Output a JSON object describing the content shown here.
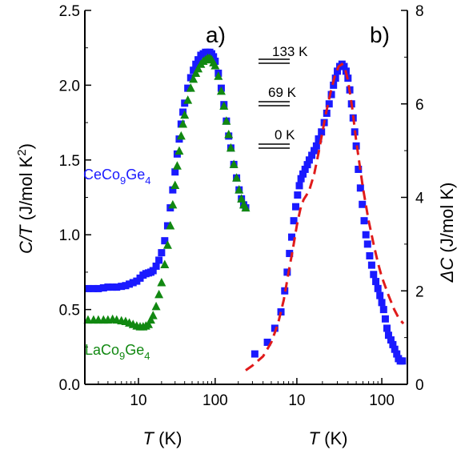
{
  "colors": {
    "ce": "#1a1aff",
    "la": "#118811",
    "fit": "#e01b1b",
    "axis": "#000000"
  },
  "chart_data": [
    {
      "panel": "a)",
      "type": "scatter",
      "xlabel_italic": "T",
      "xlabel_unit": " (K)",
      "ylabel_italic": "C/T",
      "ylabel_unit": " (J/mol K",
      "ylabel_sup": "2",
      "ylabel_close": ")",
      "x_scale": "log",
      "xlim": [
        2,
        250
      ],
      "ylim": [
        0.0,
        2.5
      ],
      "x_ticks": [
        10,
        100
      ],
      "x_tick_labels": [
        "10",
        "100"
      ],
      "y_ticks": [
        0.0,
        0.5,
        1.0,
        1.5,
        2.0,
        2.5
      ],
      "y_tick_labels": [
        "0.0",
        "0.5",
        "1.0",
        "1.5",
        "2.0",
        "2.5"
      ],
      "series": [
        {
          "name_main": "CeCo",
          "name_sub1": "9",
          "name_mid": "Ge",
          "name_sub2": "4",
          "marker": "square",
          "color": "#1a1aff",
          "x": [
            2.2,
            2.6,
            3.0,
            3.5,
            4.0,
            4.6,
            5.2,
            6.0,
            6.8,
            7.6,
            8.5,
            9.5,
            10.5,
            11.5,
            12.5,
            13.5,
            14.5,
            15.5,
            17,
            18.5,
            20,
            22,
            24,
            26,
            28,
            30,
            32,
            34,
            36,
            38,
            40,
            44,
            48,
            52,
            56,
            60,
            65,
            70,
            75,
            80,
            85,
            90,
            95,
            100,
            110,
            120,
            130,
            140,
            150,
            160,
            175,
            190,
            205,
            220,
            235,
            250
          ],
          "y": [
            0.64,
            0.64,
            0.64,
            0.645,
            0.65,
            0.65,
            0.65,
            0.655,
            0.66,
            0.67,
            0.68,
            0.69,
            0.71,
            0.73,
            0.74,
            0.745,
            0.75,
            0.76,
            0.79,
            0.83,
            0.88,
            0.96,
            1.06,
            1.18,
            1.3,
            1.42,
            1.54,
            1.64,
            1.74,
            1.82,
            1.88,
            1.98,
            2.05,
            2.1,
            2.14,
            2.17,
            2.2,
            2.21,
            2.22,
            2.22,
            2.22,
            2.21,
            2.19,
            2.16,
            2.08,
            1.98,
            1.87,
            1.76,
            1.66,
            1.58,
            1.47,
            1.38,
            1.3,
            1.24,
            1.2,
            1.18
          ]
        },
        {
          "name_main": "LaCo",
          "name_sub1": "9",
          "name_mid": "Ge",
          "name_sub2": "4",
          "marker": "triangle",
          "color": "#118811",
          "x": [
            2.2,
            2.6,
            3.0,
            3.5,
            4.0,
            4.6,
            5.2,
            6.0,
            6.8,
            7.6,
            8.5,
            9.5,
            10.5,
            11.5,
            12.5,
            13.5,
            14.5,
            15.5,
            17,
            18.5,
            20,
            22,
            24,
            26,
            28,
            30,
            32,
            34,
            36,
            38,
            40,
            44,
            48,
            52,
            56,
            60,
            65,
            70,
            75,
            80,
            85,
            90,
            95,
            100,
            110,
            120,
            130,
            140,
            150,
            160,
            175,
            190,
            205,
            220,
            235,
            250
          ],
          "y": [
            0.43,
            0.43,
            0.43,
            0.43,
            0.43,
            0.435,
            0.43,
            0.425,
            0.42,
            0.41,
            0.4,
            0.39,
            0.385,
            0.385,
            0.39,
            0.4,
            0.43,
            0.46,
            0.52,
            0.6,
            0.68,
            0.8,
            0.93,
            1.06,
            1.2,
            1.33,
            1.46,
            1.56,
            1.66,
            1.74,
            1.8,
            1.9,
            1.98,
            2.04,
            2.08,
            2.11,
            2.14,
            2.16,
            2.17,
            2.18,
            2.18,
            2.17,
            2.15,
            2.13,
            2.06,
            1.96,
            1.86,
            1.76,
            1.67,
            1.58,
            1.47,
            1.38,
            1.3,
            1.24,
            1.2,
            1.18
          ]
        }
      ]
    },
    {
      "panel": "b)",
      "type": "scatter",
      "xlabel_italic": "T",
      "xlabel_unit": " (K)",
      "ylabel_italic": "ΔC",
      "ylabel_unit": " (J/mol K)",
      "x_scale": "log",
      "xlim": [
        2.5,
        200
      ],
      "ylim": [
        0,
        8
      ],
      "x_ticks": [
        10,
        100
      ],
      "x_tick_labels": [
        "10",
        "100"
      ],
      "y_ticks": [
        0,
        2,
        4,
        6,
        8
      ],
      "y_tick_labels": [
        "0",
        "2",
        "4",
        "6",
        "8"
      ],
      "series": [
        {
          "marker": "square",
          "color": "#1a1aff",
          "x": [
            3.2,
            4.5,
            5.5,
            6.5,
            7.2,
            7.7,
            8.2,
            8.7,
            9.2,
            9.7,
            10.2,
            10.7,
            11.2,
            11.8,
            12.5,
            13.3,
            14,
            15,
            16,
            17,
            18,
            19.5,
            21,
            22.5,
            24,
            25.5,
            27,
            28.5,
            30,
            32,
            34,
            36,
            38,
            40,
            42,
            44,
            46,
            48,
            50,
            53,
            56,
            59,
            62,
            65,
            68,
            72,
            76,
            80,
            85,
            90,
            95,
            100,
            105,
            110,
            115,
            120,
            128,
            135,
            142,
            150,
            157,
            165,
            175
          ],
          "y": [
            0.65,
            0.9,
            1.2,
            1.55,
            2.0,
            2.4,
            2.8,
            3.15,
            3.5,
            3.8,
            4.05,
            4.25,
            4.4,
            4.5,
            4.6,
            4.7,
            4.8,
            4.9,
            5.0,
            5.1,
            5.25,
            5.4,
            5.6,
            5.8,
            6.0,
            6.2,
            6.4,
            6.55,
            6.7,
            6.8,
            6.85,
            6.8,
            6.7,
            6.55,
            6.3,
            6.0,
            5.7,
            5.4,
            5.1,
            4.6,
            4.2,
            3.85,
            3.5,
            3.2,
            3.0,
            2.75,
            2.55,
            2.35,
            2.2,
            2.05,
            1.9,
            1.75,
            1.6,
            1.4,
            1.2,
            1.05,
            0.95,
            0.85,
            0.75,
            0.65,
            0.55,
            0.5,
            0.5
          ]
        },
        {
          "marker": "dashed-line",
          "color": "#e01b1b",
          "x": [
            2.5,
            3,
            4,
            5,
            6,
            7,
            8,
            9,
            10,
            11,
            12,
            13,
            14,
            16,
            18,
            20,
            22,
            25,
            28,
            31,
            34,
            37,
            40,
            45,
            50,
            60,
            70,
            80,
            90,
            100,
            120,
            140,
            160,
            180
          ],
          "y": [
            0.3,
            0.4,
            0.6,
            0.9,
            1.3,
            1.8,
            2.4,
            2.9,
            3.4,
            3.75,
            3.95,
            4.05,
            4.15,
            4.5,
            4.95,
            5.4,
            5.8,
            6.25,
            6.6,
            6.8,
            6.85,
            6.75,
            6.5,
            5.9,
            5.2,
            4.2,
            3.5,
            3.0,
            2.6,
            2.3,
            1.9,
            1.6,
            1.4,
            1.3
          ]
        }
      ],
      "annotations": [
        {
          "label": "133 K"
        },
        {
          "label": "69 K"
        },
        {
          "label": "0 K"
        }
      ]
    }
  ]
}
